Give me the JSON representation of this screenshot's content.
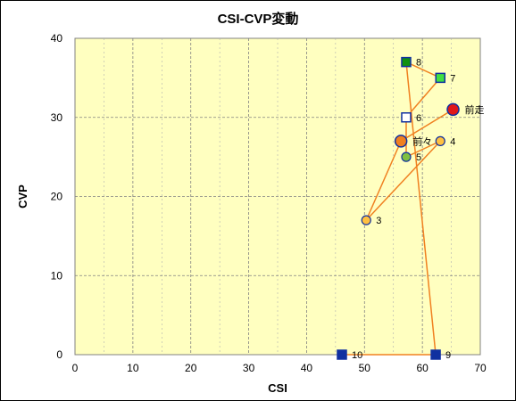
{
  "chart_data": {
    "type": "scatter",
    "title": "CSI-CVP変動",
    "xlabel": "CSI",
    "ylabel": "CVP",
    "xlim": [
      0,
      70
    ],
    "ylim": [
      0,
      40
    ],
    "x_ticks": [
      0,
      10,
      20,
      30,
      40,
      50,
      60,
      70
    ],
    "y_ticks": [
      0,
      10,
      20,
      30,
      40
    ],
    "grid": true,
    "colors": {
      "plot_background": "#ffffc0",
      "line": "#f08020",
      "grid": "#808080"
    },
    "points": [
      {
        "label": "前走",
        "x": 65.3,
        "y": 31,
        "marker": "circle-large",
        "fill": "#e01818"
      },
      {
        "label": "前々",
        "x": 56.3,
        "y": 27,
        "marker": "circle-large",
        "fill": "#f08020"
      },
      {
        "label": "3",
        "x": 50.3,
        "y": 17,
        "marker": "circle",
        "fill": "#ffc040"
      },
      {
        "label": "4",
        "x": 63.1,
        "y": 27,
        "marker": "circle",
        "fill": "#ffc040"
      },
      {
        "label": "5",
        "x": 57.2,
        "y": 25,
        "marker": "circle",
        "fill": "#80c040"
      },
      {
        "label": "6",
        "x": 57.2,
        "y": 30,
        "marker": "square",
        "fill": "#ffffff"
      },
      {
        "label": "7",
        "x": 63.1,
        "y": 35,
        "marker": "square",
        "fill": "#40e040"
      },
      {
        "label": "8",
        "x": 57.2,
        "y": 37,
        "marker": "square",
        "fill": "#109010"
      },
      {
        "label": "9",
        "x": 62.3,
        "y": 0,
        "marker": "square",
        "fill": "#1030a0"
      },
      {
        "label": "10",
        "x": 46.1,
        "y": 0,
        "marker": "square",
        "fill": "#1030a0"
      }
    ]
  }
}
